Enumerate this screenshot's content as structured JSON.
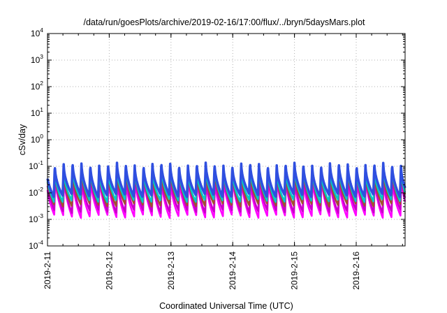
{
  "chart_data": {
    "type": "line",
    "title": "/data/run/goesPlots/archive/2019-02-16/17:00/flux/../bryn/5daysMars.plot",
    "xlabel": "Coordinated Universal Time (UTC)",
    "ylabel": "cSv/day",
    "yscale": "log",
    "ylim": [
      0.0001,
      10000
    ],
    "y_ticks": [
      {
        "base": "10",
        "exp": "-4"
      },
      {
        "base": "10",
        "exp": "-3"
      },
      {
        "base": "10",
        "exp": "-2"
      },
      {
        "base": "10",
        "exp": "-1"
      },
      {
        "base": "10",
        "exp": "0"
      },
      {
        "base": "10",
        "exp": "1"
      },
      {
        "base": "10",
        "exp": "2"
      },
      {
        "base": "10",
        "exp": "3"
      },
      {
        "base": "10",
        "exp": "4"
      }
    ],
    "x_start": "2019-2-11",
    "x_end": "2019-2-16 19:00",
    "x_ticks": [
      "2019-2-11",
      "2019-2-12",
      "2019-2-13",
      "2019-2-14",
      "2019-2-15",
      "2019-2-16"
    ],
    "grid": true,
    "legend": "none",
    "cycle_hours": 3.45,
    "series": [
      {
        "color": "#ff00ff",
        "peak": 0.045,
        "trough": 0.0013
      },
      {
        "color": "#c800c8",
        "peak": 0.06,
        "trough": 0.002
      },
      {
        "color": "#a0522d",
        "peak": 0.075,
        "trough": 0.0035
      },
      {
        "color": "#00c8c8",
        "peak": 0.09,
        "trough": 0.005
      },
      {
        "color": "#2f4fe0",
        "peak": 0.13,
        "trough": 0.008
      }
    ]
  }
}
